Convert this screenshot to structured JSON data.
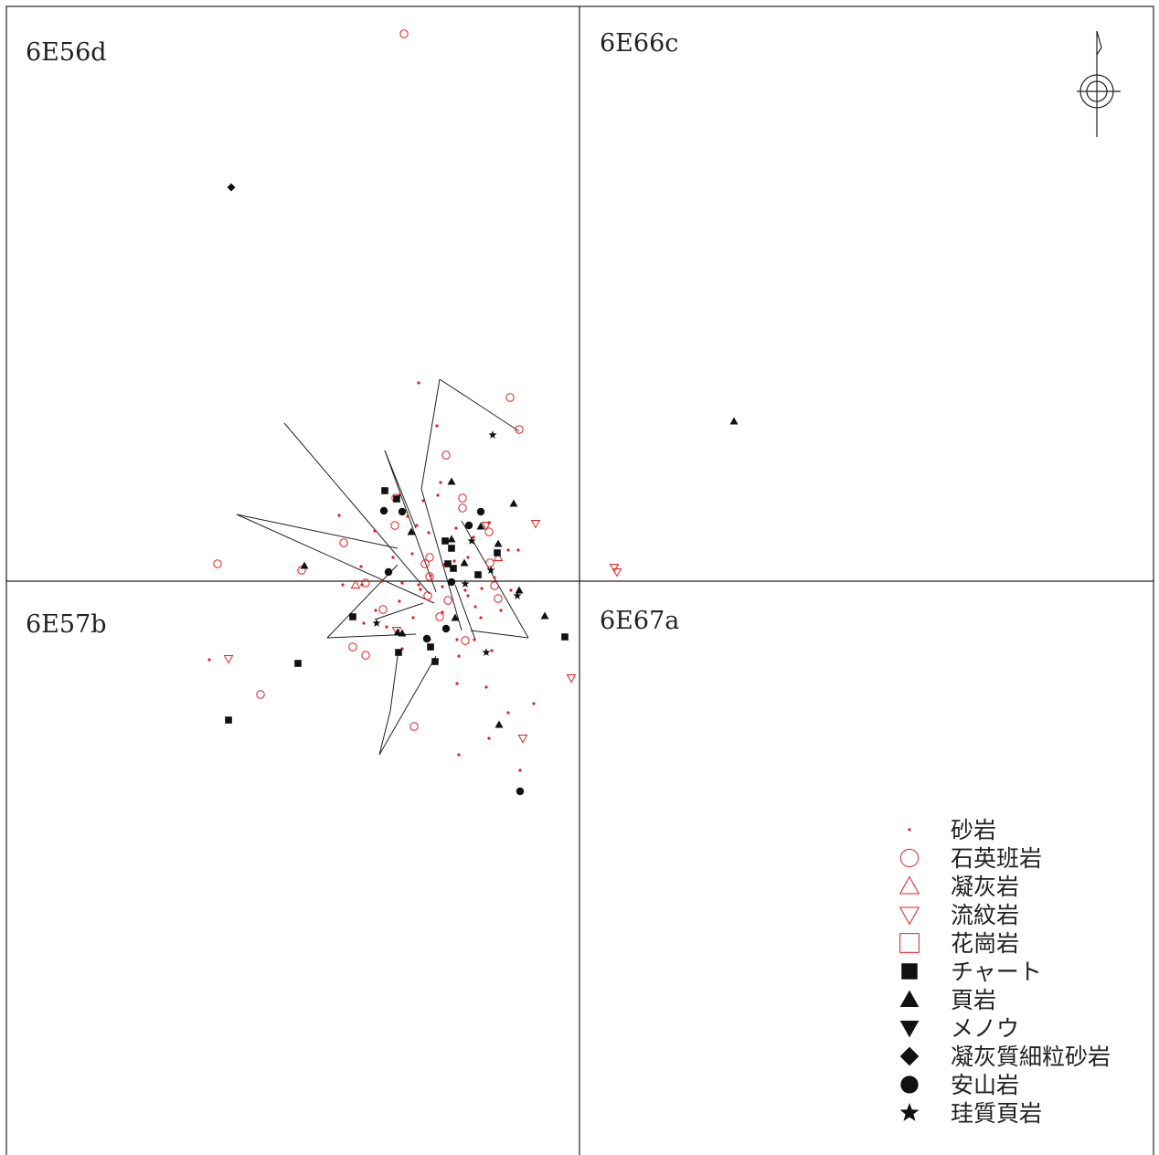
{
  "grid_labels": {
    "nw": "6E56d",
    "ne": "6E66c",
    "sw": "6E57b",
    "se": "6E67a"
  },
  "colors": {
    "red": "#e0201c",
    "black": "#111111"
  },
  "legend": [
    {
      "symbol": "dot",
      "color": "red",
      "label": "砂岩"
    },
    {
      "symbol": "circle-open",
      "color": "red",
      "label": "石英班岩"
    },
    {
      "symbol": "triangle-open",
      "color": "red",
      "label": "凝灰岩"
    },
    {
      "symbol": "triangle-down-open",
      "color": "red",
      "label": "流紋岩"
    },
    {
      "symbol": "square-open",
      "color": "red",
      "label": "花崗岩"
    },
    {
      "symbol": "square-filled",
      "color": "black",
      "label": "チャート"
    },
    {
      "symbol": "triangle-filled",
      "color": "black",
      "label": "頁岩"
    },
    {
      "symbol": "triangle-down-filled",
      "color": "black",
      "label": "メノウ"
    },
    {
      "symbol": "diamond-filled",
      "color": "black",
      "label": "凝灰質細粒砂岩"
    },
    {
      "symbol": "circle-filled",
      "color": "black",
      "label": "安山岩"
    },
    {
      "symbol": "star-filled",
      "color": "black",
      "label": "珪質頁岩"
    }
  ]
}
